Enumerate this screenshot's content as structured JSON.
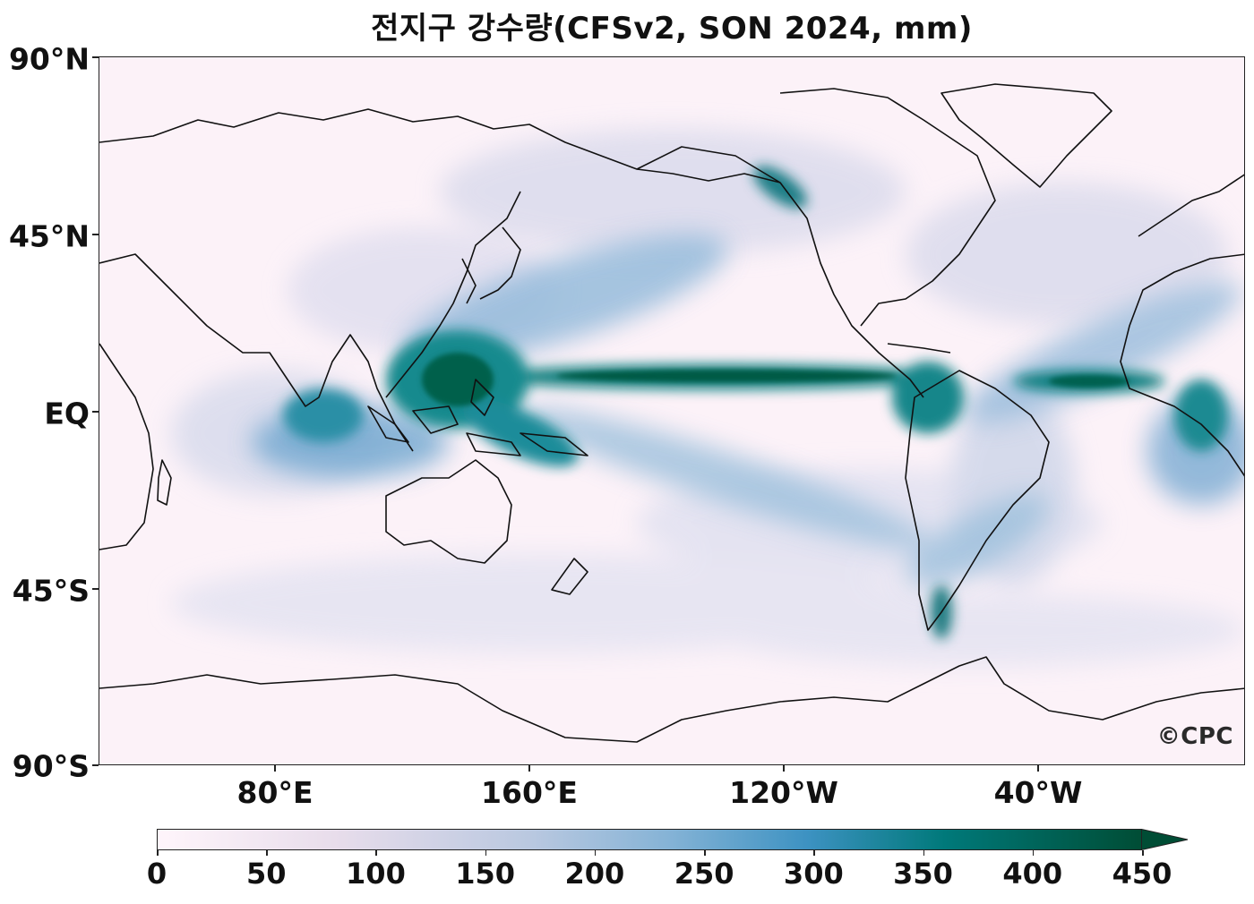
{
  "title": "전지구 강수량(CFSv2, SON 2024, mm)",
  "map": {
    "latitude_labels": [
      "90°N",
      "45°N",
      "EQ",
      "45°S",
      "90°S"
    ],
    "longitude_labels": [
      "80°E",
      "160°E",
      "120°W",
      "40°W"
    ],
    "central_meridian": "180°",
    "watermark": "©CPC"
  },
  "colorbar": {
    "min": 0,
    "max": 450,
    "ticks": [
      "0",
      "50",
      "100",
      "150",
      "200",
      "250",
      "300",
      "350",
      "400",
      "450"
    ],
    "extend": "max",
    "colors": [
      "#fff5fb",
      "#e8ddeb",
      "#b9c8e0",
      "#85b3d6",
      "#3d92c2",
      "#00797a",
      "#004d35"
    ]
  }
}
